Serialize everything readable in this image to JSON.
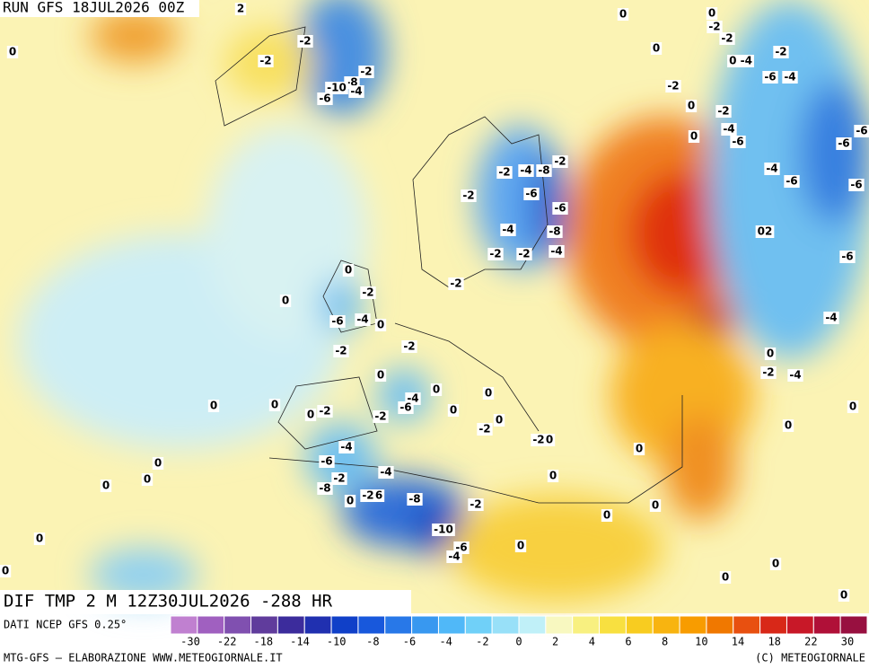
{
  "header": {
    "run": "RUN GFS 18JUL2026 00Z"
  },
  "footer": {
    "field": "DIF TMP 2 M 12Z30JUL2026 -288 HR",
    "source": "DATI NCEP GFS 0.25°",
    "credit": "MTG-GFS – ELABORAZIONE WWW.METEOGIORNALE.IT",
    "copyright": "(C) METEOGIORNALE"
  },
  "legend": {
    "colors": [
      "#c080d0",
      "#a060c0",
      "#8050b0",
      "#603c9c",
      "#3c2c9c",
      "#2030b0",
      "#1040c8",
      "#1858dc",
      "#2878e8",
      "#3898f0",
      "#50b8f8",
      "#70d0f8",
      "#98e0f8",
      "#c0f0f8",
      "#f8f8c0",
      "#f8f080",
      "#f8e040",
      "#f8cc20",
      "#f8b410",
      "#f89c00",
      "#f07800",
      "#e85010",
      "#d82818",
      "#c81828",
      "#b01038",
      "#981040"
    ],
    "labels": [
      -30,
      -22,
      -18,
      -14,
      -10,
      -8,
      -6,
      -4,
      -2,
      0,
      2,
      4,
      6,
      8,
      10,
      14,
      18,
      22,
      30
    ]
  },
  "map_labels": [
    "2",
    "0",
    "-2",
    "-2",
    "-2",
    "-8",
    "-10",
    "-4",
    "-6",
    "0",
    "0",
    "-2",
    "-2",
    "0",
    "-2",
    "0 -4",
    "-6",
    "-4",
    "-2",
    "0",
    "-2",
    "-4",
    "-6",
    "0",
    "-6",
    "-6",
    "-4",
    "-6",
    "-6",
    "-2",
    "-2",
    "-4",
    "-8",
    "-6",
    "-2",
    "-6",
    "-4",
    "-8",
    "-4",
    "-2",
    "-2",
    "02",
    "-6",
    "0",
    "-2",
    "-2",
    "0",
    "-6",
    "-4",
    "0",
    "-4",
    "-2",
    "-2",
    "0",
    "-2",
    "-4",
    "0",
    "-4",
    "-6",
    "0",
    "0",
    "0",
    "0",
    "0",
    "-2",
    "-2",
    "0",
    "0",
    "0",
    "0",
    "-2",
    "-4",
    "-2",
    "0",
    "0",
    "-6",
    "-4",
    "0",
    "0",
    "-2",
    "0",
    "0",
    "-8",
    "0",
    "-2",
    "6",
    "-8",
    "-2",
    "0",
    "0",
    "0",
    "-10",
    "0",
    "-6",
    "-4",
    "0",
    "0",
    "0",
    "0"
  ]
}
